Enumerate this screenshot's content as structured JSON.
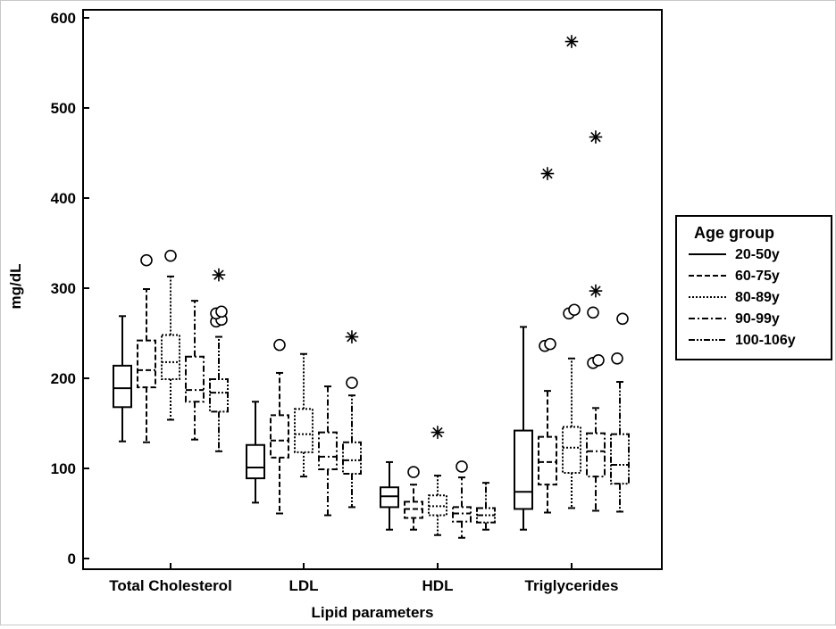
{
  "chart_data": {
    "type": "box",
    "title": "",
    "xlabel": "Lipid parameters",
    "ylabel": "mg/dL",
    "ylim": [
      0,
      600
    ],
    "yticks": [
      0,
      100,
      200,
      300,
      400,
      500,
      600
    ],
    "grid": false,
    "legend_position": "right",
    "legend": {
      "title": "Age group",
      "entries": [
        {
          "label": "20-50y",
          "dash": "solid"
        },
        {
          "label": "60-75y",
          "dash": "dashed"
        },
        {
          "label": "80-89y",
          "dash": "dotted"
        },
        {
          "label": "90-99y",
          "dash": "dash-dot"
        },
        {
          "label": "100-106y",
          "dash": "dash-dot-dot"
        }
      ]
    },
    "categories": [
      "Total Cholesterol",
      "LDL",
      "HDL",
      "Triglycerides"
    ],
    "series": [
      {
        "name": "20-50y",
        "dash": "solid",
        "boxes": [
          {
            "whisker_low": 130,
            "q1": 168,
            "median": 189,
            "q3": 214,
            "whisker_high": 269,
            "outliers": [],
            "extremes": []
          },
          {
            "whisker_low": 62,
            "q1": 89,
            "median": 101,
            "q3": 126,
            "whisker_high": 174,
            "outliers": [],
            "extremes": []
          },
          {
            "whisker_low": 32,
            "q1": 57,
            "median": 69,
            "q3": 79,
            "whisker_high": 107,
            "outliers": [],
            "extremes": []
          },
          {
            "whisker_low": 32,
            "q1": 55,
            "median": 74,
            "q3": 142,
            "whisker_high": 257,
            "outliers": [],
            "extremes": []
          }
        ]
      },
      {
        "name": "60-75y",
        "dash": "dashed",
        "boxes": [
          {
            "whisker_low": 129,
            "q1": 190,
            "median": 209,
            "q3": 242,
            "whisker_high": 299,
            "outliers": [
              331
            ],
            "extremes": []
          },
          {
            "whisker_low": 50,
            "q1": 112,
            "median": 131,
            "q3": 159,
            "whisker_high": 206,
            "outliers": [
              237
            ],
            "extremes": []
          },
          {
            "whisker_low": 32,
            "q1": 45,
            "median": 55,
            "q3": 63,
            "whisker_high": 82,
            "outliers": [
              96
            ],
            "extremes": []
          },
          {
            "whisker_low": 51,
            "q1": 82,
            "median": 107,
            "q3": 135,
            "whisker_high": 186,
            "outliers": [
              236,
              238
            ],
            "extremes": [
              426
            ]
          }
        ]
      },
      {
        "name": "80-89y",
        "dash": "dotted",
        "boxes": [
          {
            "whisker_low": 154,
            "q1": 199,
            "median": 218,
            "q3": 248,
            "whisker_high": 313,
            "outliers": [
              336
            ],
            "extremes": []
          },
          {
            "whisker_low": 91,
            "q1": 118,
            "median": 138,
            "q3": 166,
            "whisker_high": 227,
            "outliers": [],
            "extremes": []
          },
          {
            "whisker_low": 26,
            "q1": 48,
            "median": 58,
            "q3": 70,
            "whisker_high": 92,
            "outliers": [],
            "extremes": [
              139
            ]
          },
          {
            "whisker_low": 56,
            "q1": 95,
            "median": 123,
            "q3": 146,
            "whisker_high": 222,
            "outliers": [
              272,
              276
            ],
            "extremes": [
              573
            ]
          }
        ]
      },
      {
        "name": "90-99y",
        "dash": "dash-dot",
        "boxes": [
          {
            "whisker_low": 132,
            "q1": 174,
            "median": 187,
            "q3": 224,
            "whisker_high": 286,
            "outliers": [],
            "extremes": []
          },
          {
            "whisker_low": 48,
            "q1": 99,
            "median": 113,
            "q3": 140,
            "whisker_high": 191,
            "outliers": [],
            "extremes": []
          },
          {
            "whisker_low": 23,
            "q1": 41,
            "median": 50,
            "q3": 57,
            "whisker_high": 90,
            "outliers": [
              102
            ],
            "extremes": []
          },
          {
            "whisker_low": 53,
            "q1": 91,
            "median": 119,
            "q3": 139,
            "whisker_high": 167,
            "outliers": [
              217,
              220,
              273
            ],
            "extremes": [
              296,
              467
            ]
          }
        ]
      },
      {
        "name": "100-106y",
        "dash": "dash-dot-dot",
        "boxes": [
          {
            "whisker_low": 119,
            "q1": 163,
            "median": 184,
            "q3": 199,
            "whisker_high": 246,
            "outliers": [
              263,
              265,
              272,
              274
            ],
            "extremes": [
              314
            ]
          },
          {
            "whisker_low": 57,
            "q1": 94,
            "median": 109,
            "q3": 129,
            "whisker_high": 181,
            "outliers": [
              195
            ],
            "extremes": [
              245
            ]
          },
          {
            "whisker_low": 32,
            "q1": 40,
            "median": 48,
            "q3": 56,
            "whisker_high": 84,
            "outliers": [],
            "extremes": []
          },
          {
            "whisker_low": 52,
            "q1": 83,
            "median": 104,
            "q3": 138,
            "whisker_high": 196,
            "outliers": [
              222,
              266
            ],
            "extremes": []
          }
        ]
      }
    ]
  }
}
